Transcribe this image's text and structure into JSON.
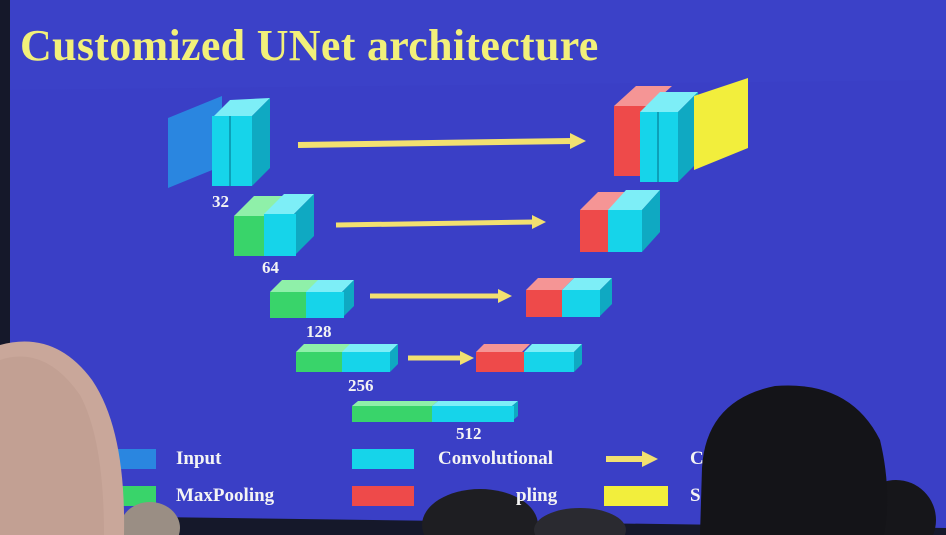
{
  "slide": {
    "title": "Customized UNet architecture",
    "colors": {
      "background": "#3a3fc6",
      "title": "#f2f07a",
      "input": "#2a86e0",
      "convolutional": "#16d4ea",
      "maxpooling": "#39d46a",
      "upsampling": "#ee4a4a",
      "sigmoid": "#f2ee3c",
      "arrow": "#f2e070"
    }
  },
  "diagram": {
    "levels": [
      {
        "channels": "32"
      },
      {
        "channels": "64"
      },
      {
        "channels": "128"
      },
      {
        "channels": "256"
      },
      {
        "channels": "512"
      }
    ]
  },
  "legend": {
    "input": "Input",
    "convolutional": "Convolutional",
    "arrow_partial": "C",
    "maxpooling": "MaxPooling",
    "upsampling_partial": "pling",
    "sigmoid_partial": "S"
  },
  "audience": {
    "heads": [
      "bald-head-left",
      "dark-hair-head-right",
      "head-center-1",
      "head-center-2",
      "head-far-left"
    ]
  }
}
